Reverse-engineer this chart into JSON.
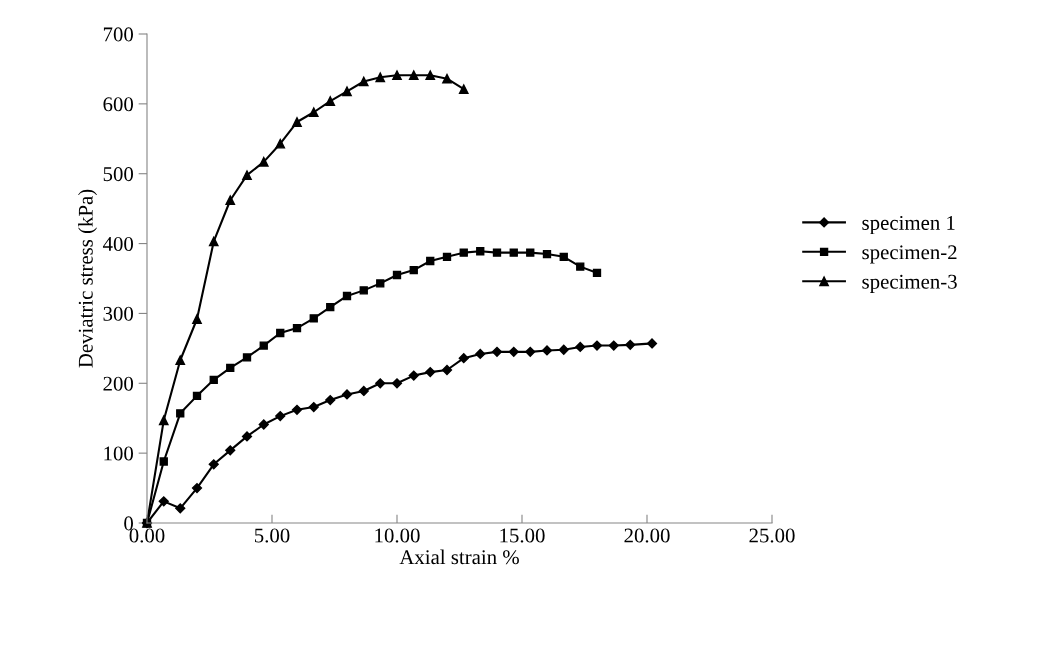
{
  "chart_data": {
    "type": "line",
    "xlabel": "Axial strain %",
    "ylabel": "Deviatric stress (kPa)",
    "xlim": [
      0,
      25
    ],
    "xticks": [
      {
        "value": 0,
        "label": "0.00"
      },
      {
        "value": 5,
        "label": "5.00"
      },
      {
        "value": 10,
        "label": "10.00"
      },
      {
        "value": 15,
        "label": "15.00"
      },
      {
        "value": 20,
        "label": "20.00"
      },
      {
        "value": 25,
        "label": "25.00"
      }
    ],
    "ylim": [
      0,
      700
    ],
    "yticks": [
      0,
      100,
      200,
      300,
      400,
      500,
      600,
      700
    ],
    "grid": false,
    "legend": "right",
    "line_style": "solid",
    "series": [
      {
        "name": "specimen 1",
        "color": "#000000",
        "marker": "diamond",
        "x": [
          0,
          0.67,
          1.33,
          2,
          2.67,
          3.33,
          4,
          4.67,
          5.33,
          6,
          6.67,
          7.33,
          8,
          8.67,
          9.33,
          10,
          10.67,
          11.33,
          12,
          12.67,
          13.33,
          14,
          14.67,
          15.33,
          16,
          16.67,
          17.33,
          18,
          18.67,
          19.33,
          20.2
        ],
        "values": [
          0,
          31,
          21,
          50,
          84,
          104,
          124,
          141,
          153,
          162,
          166,
          176,
          184,
          189,
          200,
          200,
          211,
          216,
          219,
          236,
          242,
          245,
          245,
          245,
          247,
          248,
          252,
          254,
          254,
          255,
          257
        ]
      },
      {
        "name": "specimen-2",
        "color": "#000000",
        "marker": "square",
        "x": [
          0,
          0.67,
          1.33,
          2,
          2.67,
          3.33,
          4,
          4.67,
          5.33,
          6,
          6.67,
          7.33,
          8,
          8.67,
          9.33,
          10,
          10.67,
          11.33,
          12,
          12.67,
          13.33,
          14,
          14.67,
          15.33,
          16,
          16.67,
          17.33,
          18
        ],
        "values": [
          0,
          88,
          157,
          182,
          205,
          222,
          237,
          254,
          272,
          279,
          293,
          309,
          325,
          333,
          343,
          355,
          362,
          375,
          381,
          387,
          389,
          387,
          387,
          387,
          385,
          381,
          367,
          358
        ]
      },
      {
        "name": "specimen-3",
        "color": "#000000",
        "marker": "triangle",
        "x": [
          0,
          0.67,
          1.33,
          2,
          2.67,
          3.33,
          4,
          4.67,
          5.33,
          6,
          6.67,
          7.33,
          8,
          8.67,
          9.33,
          10,
          10.67,
          11.33,
          12,
          12.67
        ],
        "values": [
          0,
          147,
          233,
          292,
          403,
          462,
          498,
          517,
          543,
          574,
          588,
          604,
          618,
          632,
          638,
          641,
          641,
          641,
          636,
          621
        ]
      }
    ]
  }
}
